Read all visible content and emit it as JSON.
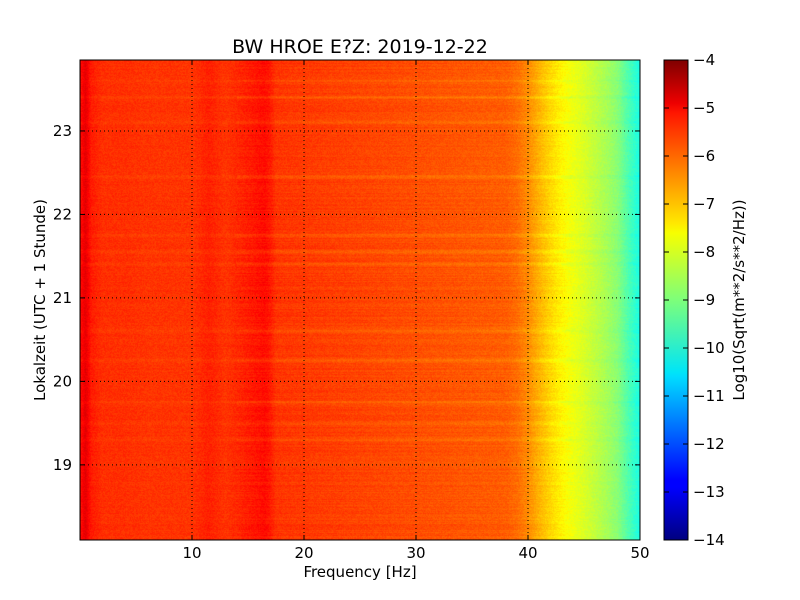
{
  "chart_data": {
    "type": "heatmap",
    "title": "BW HROE E?Z: 2019-12-22",
    "xlabel": "Frequency [Hz]",
    "ylabel": "Lokalzeit (UTC + 1 Stunde)",
    "xlim": [
      0,
      50
    ],
    "ylim": [
      23.85,
      18.1
    ],
    "x_ticks": [
      10,
      20,
      30,
      40,
      50
    ],
    "x_tick_labels": [
      "10",
      "20",
      "30",
      "40",
      "50"
    ],
    "y_ticks": [
      19,
      20,
      21,
      22,
      23
    ],
    "y_tick_labels": [
      "19",
      "20",
      "21",
      "22",
      "23"
    ],
    "grid": true,
    "colormap": "jet",
    "colorbar": {
      "label": "Log10(Sqrt(m**2/s**2/Hz))",
      "range": [
        -14,
        -4
      ],
      "ticks": [
        -4,
        -5,
        -6,
        -7,
        -8,
        -9,
        -10,
        -11,
        -12,
        -13,
        -14
      ],
      "tick_labels": [
        "−4",
        "−5",
        "−6",
        "−7",
        "−8",
        "−9",
        "−10",
        "−11",
        "−12",
        "−13",
        "−14"
      ]
    },
    "frequency_profile": {
      "frequency_hz": [
        0,
        0.5,
        1,
        2,
        4,
        6,
        10,
        11.5,
        13,
        16.5,
        17,
        17.5,
        20,
        25,
        30,
        35,
        38,
        39,
        40,
        41,
        42,
        43,
        44,
        45,
        46,
        47,
        48,
        49,
        50
      ],
      "value": [
        -5.4,
        -5.0,
        -5.5,
        -5.7,
        -5.7,
        -5.75,
        -5.75,
        -5.55,
        -5.75,
        -5.35,
        -5.5,
        -5.75,
        -5.8,
        -5.9,
        -6.0,
        -6.1,
        -6.15,
        -6.3,
        -6.6,
        -7.0,
        -7.35,
        -7.65,
        -7.9,
        -8.1,
        -8.35,
        -8.6,
        -8.9,
        -9.5,
        -10.0
      ]
    },
    "quiet_bands_hours": [
      19.3,
      19.5,
      19.75,
      20.25,
      20.6,
      21.4,
      21.55,
      21.75,
      22.45,
      23.1,
      23.4,
      23.6
    ]
  }
}
